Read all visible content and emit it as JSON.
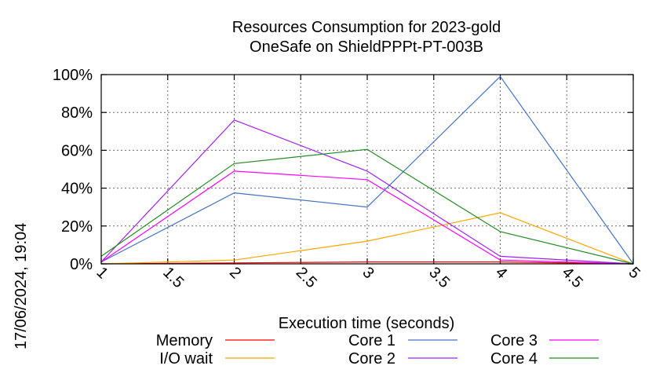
{
  "timestamp": "17/06/2024, 19:04",
  "chart_data": {
    "type": "line",
    "title": "Resources Consumption for 2023-gold",
    "subtitle": "OneSafe on ShieldPPPt-PT-003B",
    "xlabel": "Execution time (seconds)",
    "ylabel": "",
    "xlim": [
      1,
      5
    ],
    "ylim": [
      0,
      100
    ],
    "xticks": [
      "1",
      "1.5",
      "2",
      "2.5",
      "3",
      "3.5",
      "4",
      "4.5",
      "5"
    ],
    "xtick_values": [
      1,
      1.5,
      2,
      2.5,
      3,
      3.5,
      4,
      4.5,
      5
    ],
    "yticks": [
      "0%",
      "20%",
      "40%",
      "60%",
      "80%",
      "100%"
    ],
    "ytick_values": [
      0,
      20,
      40,
      60,
      80,
      100
    ],
    "grid": true,
    "legend_position": "bottom",
    "x": [
      1,
      2,
      3,
      4,
      5
    ],
    "series": [
      {
        "name": "Memory",
        "color": "#ff0000",
        "values": [
          0,
          0.5,
          1,
          1,
          0
        ]
      },
      {
        "name": "I/O wait",
        "color": "#ffa500",
        "values": [
          0,
          2,
          12,
          27,
          0
        ]
      },
      {
        "name": "Core 1",
        "color": "#4472c4",
        "values": [
          1,
          37.5,
          30,
          99,
          0
        ]
      },
      {
        "name": "Core 2",
        "color": "#a020f0",
        "values": [
          1,
          76,
          49,
          4,
          0
        ]
      },
      {
        "name": "Core 3",
        "color": "#ff00ff",
        "values": [
          1,
          49,
          44.5,
          2,
          0
        ]
      },
      {
        "name": "Core 4",
        "color": "#228b22",
        "values": [
          4,
          53,
          60.5,
          17,
          0
        ]
      }
    ]
  }
}
